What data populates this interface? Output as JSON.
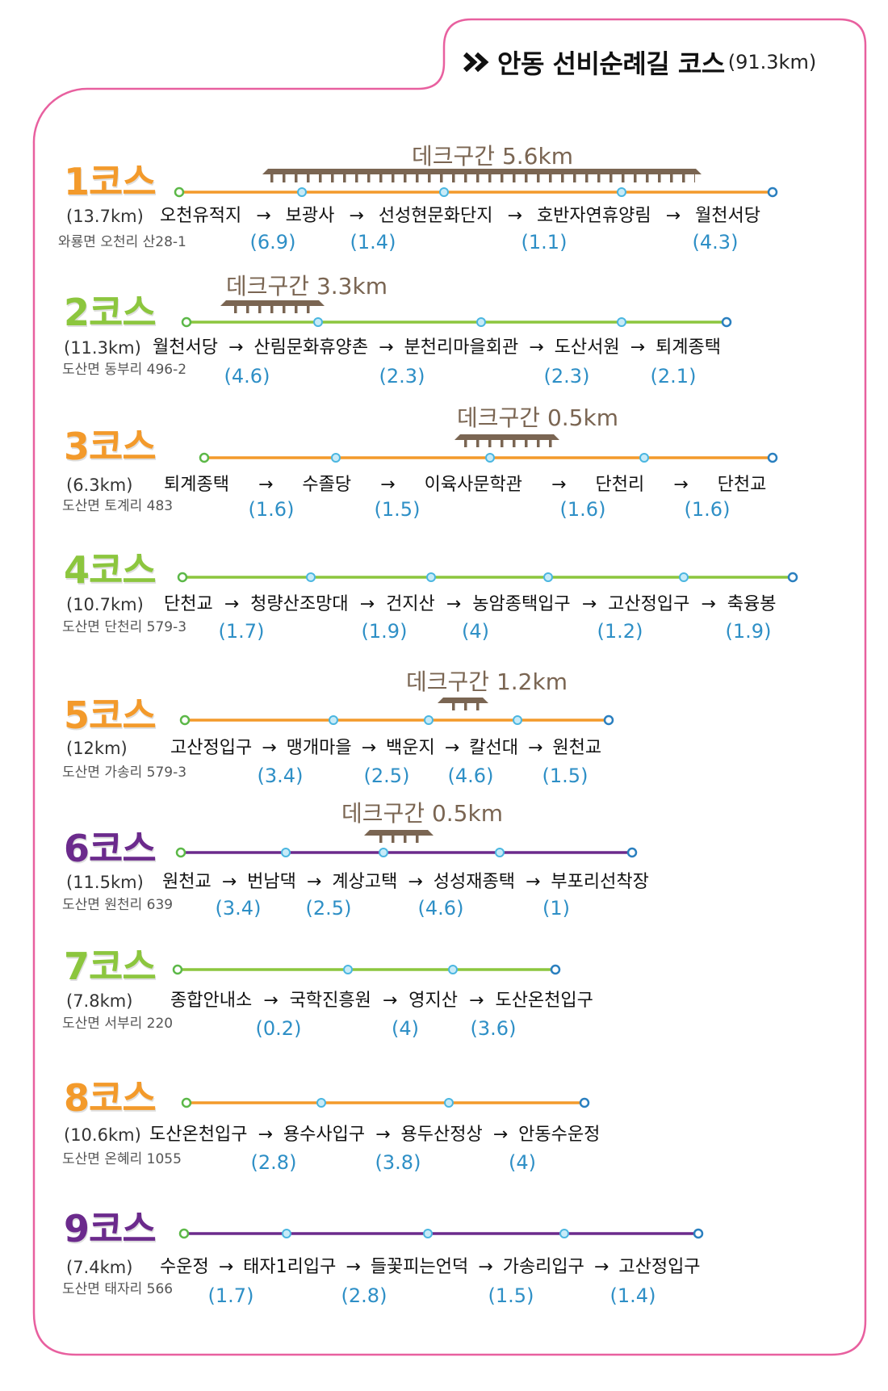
{
  "header": {
    "icon": "double-chevron-right-icon",
    "title": "안동 선비순례길 코스",
    "total": "(91.3km)"
  },
  "arrow": "→",
  "colors": {
    "orange": "#f39a2b",
    "green": "#8cc63e",
    "purple": "#6b2a8c",
    "distance_text": "#2e8fc6",
    "deck": "#7a6552",
    "border": "#e8609f",
    "start_marker": "#5cb848",
    "mid_marker": "#4bb6e0",
    "end_marker": "#2a7fbf"
  },
  "courses": [
    {
      "label": "1코스",
      "color": "#f39a2b",
      "length": "(13.7km)",
      "start_address": "와룡면 오천리 산28-1",
      "deck": "데크구간 5.6km",
      "stops": [
        "오천유적지",
        "보광사",
        "선성현문화단지",
        "호반자연휴양림",
        "월천서당"
      ],
      "distances": [
        "(6.9)",
        "(1.4)",
        "(1.1)",
        "(4.3)"
      ]
    },
    {
      "label": "2코스",
      "color": "#8cc63e",
      "length": "(11.3km)",
      "start_address": "도산면 동부리 496-2",
      "deck": "데크구간 3.3km",
      "stops": [
        "월천서당",
        "산림문화휴양촌",
        "분천리마을회관",
        "도산서원",
        "퇴계종택"
      ],
      "distances": [
        "(4.6)",
        "(2.3)",
        "(2.3)",
        "(2.1)"
      ]
    },
    {
      "label": "3코스",
      "color": "#f39a2b",
      "length": "(6.3km)",
      "start_address": "도산면 토계리 483",
      "deck": "데크구간 0.5km",
      "stops": [
        "퇴계종택",
        "수졸당",
        "이육사문학관",
        "단천리",
        "단천교"
      ],
      "distances": [
        "(1.6)",
        "(1.5)",
        "(1.6)",
        "(1.6)"
      ]
    },
    {
      "label": "4코스",
      "color": "#8cc63e",
      "length": "(10.7km)",
      "start_address": "도산면 단천리 579-3",
      "stops": [
        "단천교",
        "청량산조망대",
        "건지산",
        "농암종택입구",
        "고산정입구",
        "축융봉"
      ],
      "distances": [
        "(1.7)",
        "(1.9)",
        "(4)",
        "(1.2)",
        "(1.9)"
      ]
    },
    {
      "label": "5코스",
      "color": "#f39a2b",
      "length": "(12km)",
      "start_address": "도산면 가송리 579-3",
      "deck": "데크구간 1.2km",
      "stops": [
        "고산정입구",
        "맹개마을",
        "백운지",
        "칼선대",
        "원천교"
      ],
      "distances": [
        "(3.4)",
        "(2.5)",
        "(4.6)",
        "(1.5)"
      ]
    },
    {
      "label": "6코스",
      "color": "#6b2a8c",
      "length": "(11.5km)",
      "start_address": "도산면 원천리 639",
      "deck": "데크구간 0.5km",
      "stops": [
        "원천교",
        "번남댁",
        "계상고택",
        "성성재종택",
        "부포리선착장"
      ],
      "distances": [
        "(3.4)",
        "(2.5)",
        "(4.6)",
        "(1)"
      ]
    },
    {
      "label": "7코스",
      "color": "#8cc63e",
      "length": "(7.8km)",
      "start_address": "도산면 서부리 220",
      "stops": [
        "종합안내소",
        "국학진흥원",
        "영지산",
        "도산온천입구"
      ],
      "distances": [
        "(0.2)",
        "(4)",
        "(3.6)"
      ]
    },
    {
      "label": "8코스",
      "color": "#f39a2b",
      "length": "(10.6km)",
      "start_address": "도산면 온혜리 1055",
      "stops": [
        "도산온천입구",
        "용수사입구",
        "용두산정상",
        "안동수운정"
      ],
      "distances": [
        "(2.8)",
        "(3.8)",
        "(4)"
      ]
    },
    {
      "label": "9코스",
      "color": "#6b2a8c",
      "length": "(7.4km)",
      "start_address": "도산면 태자리 566",
      "stops": [
        "수운정",
        "태자1리입구",
        "들꽃피는언덕",
        "가송리입구",
        "고산정입구"
      ],
      "distances": [
        "(1.7)",
        "(2.8)",
        "(1.5)",
        "(1.4)"
      ]
    }
  ]
}
